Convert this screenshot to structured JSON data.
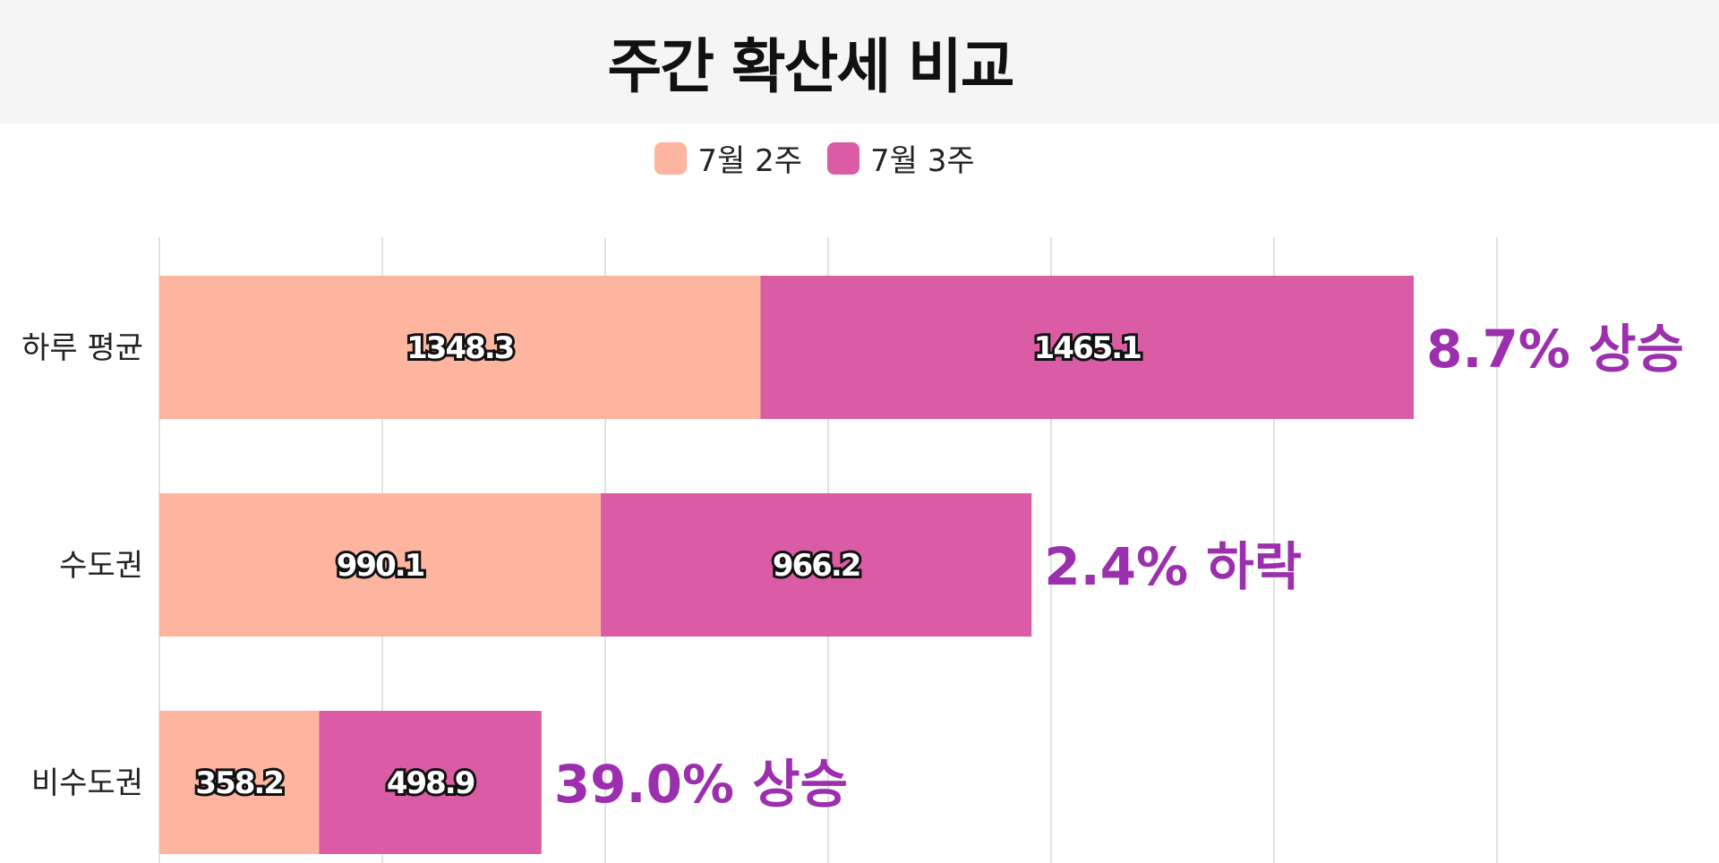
{
  "title": "주간 확산세 비교",
  "legend": [
    {
      "label": "7월 2주",
      "color": "#feb5a0"
    },
    {
      "label": "7월 3주",
      "color": "#da5ca5"
    }
  ],
  "chart_data": {
    "type": "bar",
    "orientation": "horizontal",
    "stacked": true,
    "categories": [
      "하루 평균",
      "수도권",
      "비수도권"
    ],
    "series": [
      {
        "name": "7월 2주",
        "color": "#feb5a0",
        "values": [
          1348.3,
          990.1,
          358.2
        ]
      },
      {
        "name": "7월 3주",
        "color": "#da5ca5",
        "values": [
          1465.1,
          966.2,
          498.9
        ]
      }
    ],
    "annotations": [
      "8.7% 상승",
      "2.4% 하락",
      "39.0% 상승"
    ],
    "annotation_color": "#9b2fae",
    "xlim": [
      0,
      3000
    ],
    "grid": true,
    "gridline_color": "#d9d9d9",
    "legend_position": "top-center"
  }
}
